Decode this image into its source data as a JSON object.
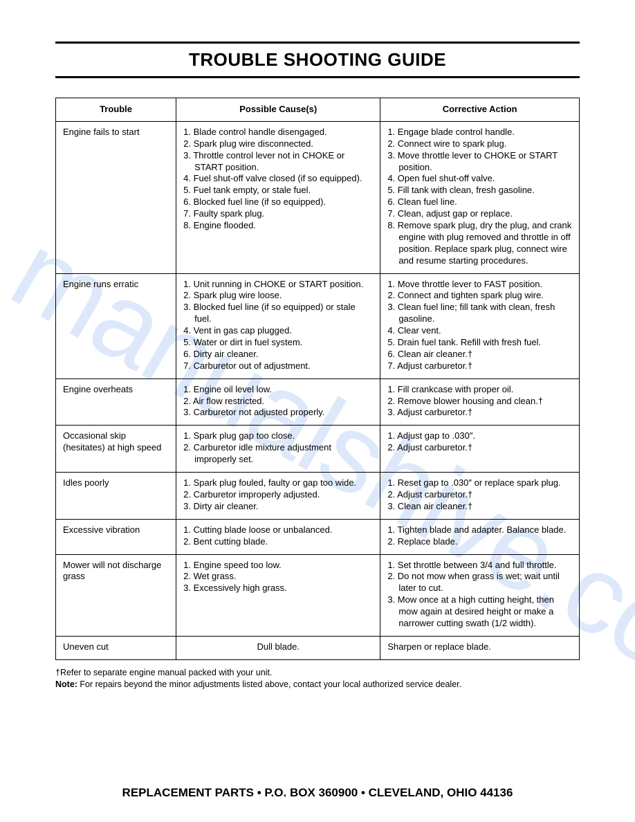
{
  "page": {
    "title": "TROUBLE SHOOTING GUIDE",
    "background_color": "#ffffff",
    "text_color": "#000000",
    "watermark_text": "manualshive.co",
    "watermark_color": "rgba(100,155,230,0.22)",
    "footer": "REPLACEMENT PARTS • P.O. BOX 360900 • CLEVELAND, OHIO 44136",
    "footer_fontsize": 17
  },
  "table": {
    "columns": [
      "Trouble",
      "Possible Cause(s)",
      "Corrective Action"
    ],
    "column_widths": [
      "23%",
      "39%",
      "38%"
    ],
    "border_color": "#000000",
    "font_size": 13,
    "rows": [
      {
        "trouble": "Engine fails to start",
        "causes": [
          "1. Blade control handle disengaged.",
          "2. Spark plug wire disconnected.",
          "3. Throttle control lever not in CHOKE or START position.",
          "4. Fuel shut-off valve closed (if so equipped).",
          "5. Fuel tank empty, or stale fuel.",
          "6. Blocked fuel line (if so equipped).",
          "7. Faulty spark plug.",
          "8. Engine flooded."
        ],
        "actions": [
          "1. Engage blade control handle.",
          "2. Connect wire to spark plug.",
          "3. Move throttle lever to CHOKE or START position.",
          "4. Open fuel shut-off valve.",
          " ",
          "5. Fill tank with clean, fresh gasoline.",
          "6. Clean fuel line.",
          "7. Clean, adjust gap or replace.",
          "8. Remove spark plug, dry the plug, and crank engine with plug removed and throttle in off position. Replace spark plug, connect wire and resume starting procedures."
        ]
      },
      {
        "trouble": "Engine runs erratic",
        "causes": [
          "1. Unit running in CHOKE or START position.",
          "2. Spark plug wire loose.",
          "3. Blocked fuel line (if so equipped) or stale fuel.",
          " ",
          "4. Vent in gas cap plugged.",
          "5. Water or dirt in fuel system.",
          "6. Dirty air cleaner.",
          "7. Carburetor out of adjustment."
        ],
        "actions": [
          "1. Move throttle lever to FAST position.",
          " ",
          "2. Connect and tighten spark plug wire.",
          " ",
          "3. Clean fuel line; fill tank with clean, fresh gasoline.",
          "4. Clear vent.",
          "5. Drain fuel tank. Refill with fresh fuel.",
          "6. Clean air cleaner.†",
          "7. Adjust carburetor.†"
        ]
      },
      {
        "trouble": "Engine overheats",
        "causes": [
          "1. Engine oil level low.",
          "2. Air flow restricted.",
          "3. Carburetor not adjusted properly."
        ],
        "actions": [
          "1. Fill crankcase with proper oil.",
          "2. Remove blower housing and clean.†",
          "3. Adjust carburetor.†"
        ]
      },
      {
        "trouble": "Occasional skip (hesitates) at high speed",
        "causes": [
          "1. Spark plug gap too close.",
          "2. Carburetor idle mixture adjustment improperly set."
        ],
        "actions": [
          "1. Adjust gap to .030″.",
          "2. Adjust carburetor.†"
        ]
      },
      {
        "trouble": "Idles poorly",
        "causes": [
          "1. Spark plug fouled, faulty or gap too wide.",
          "2. Carburetor improperly adjusted.",
          "3. Dirty air cleaner."
        ],
        "actions": [
          "1. Reset gap to .030″ or replace spark plug.",
          "2. Adjust carburetor.†",
          "3. Clean air cleaner.†"
        ]
      },
      {
        "trouble": "Excessive vibration",
        "causes": [
          "1. Cutting blade loose or unbalanced.",
          " ",
          "2. Bent cutting blade."
        ],
        "actions": [
          "1. Tighten blade and adapter. Balance blade.",
          "2. Replace blade."
        ]
      },
      {
        "trouble": "Mower will not discharge grass",
        "causes": [
          "1. Engine speed too low.",
          " ",
          "2. Wet grass.",
          " ",
          "3. Excessively high grass."
        ],
        "actions": [
          "1. Set throttle between 3/4 and full throttle.",
          "2. Do not mow when grass is wet; wait until later to cut.",
          "3. Mow once at a high cutting height, then mow again at desired height or make a narrower cutting swath (1/2 width)."
        ]
      },
      {
        "trouble": "Uneven cut",
        "causes_single": "Dull blade.",
        "actions_single": "Sharpen or replace blade."
      }
    ]
  },
  "footnotes": {
    "line1": "†Refer to separate engine manual packed with your unit.",
    "note_label": "Note:",
    "note_text": " For repairs beyond the minor adjustments listed above, contact your local authorized service dealer."
  }
}
